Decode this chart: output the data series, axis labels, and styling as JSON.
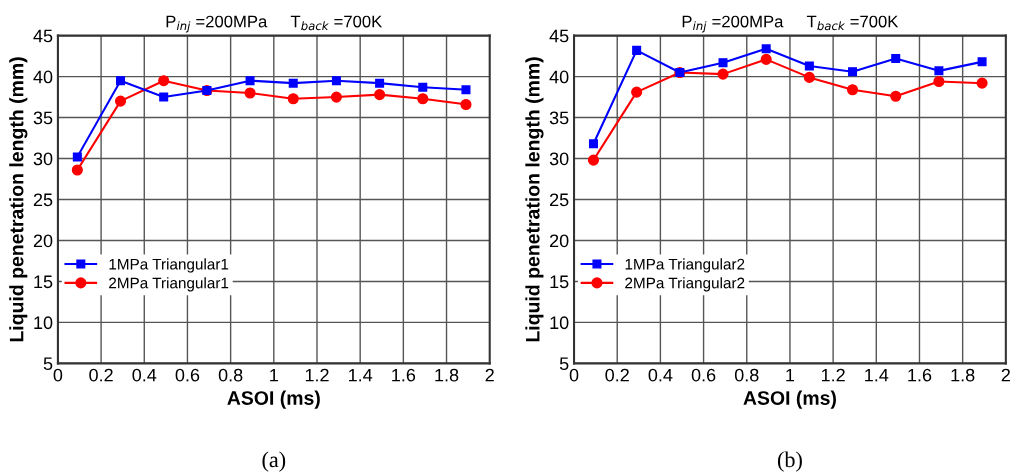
{
  "chart_data": [
    {
      "type": "line",
      "title": "P$_{inj}$ =200MPa     T$_{back}$ =700K",
      "xlabel": "ASOI (ms)",
      "ylabel": "Liquid penetration length (mm)",
      "x": [
        0.09,
        0.29,
        0.49,
        0.69,
        0.89,
        1.09,
        1.29,
        1.49,
        1.69,
        1.89
      ],
      "series": [
        {
          "name": "1MPa Triangular1",
          "color": "#0000ff",
          "marker": "square",
          "values": [
            30.2,
            39.5,
            37.5,
            38.3,
            39.5,
            39.2,
            39.5,
            39.2,
            38.7,
            38.4
          ]
        },
        {
          "name": "2MPa Triangular1",
          "color": "#ff0000",
          "marker": "circle",
          "values": [
            28.6,
            37.0,
            39.5,
            38.3,
            38.0,
            37.3,
            37.5,
            37.8,
            37.3,
            36.6
          ]
        }
      ],
      "xlim": [
        0,
        2
      ],
      "xticks": [
        0,
        0.2,
        0.4,
        0.6,
        0.8,
        1,
        1.2,
        1.4,
        1.6,
        1.8,
        2
      ],
      "ylim": [
        5,
        45
      ],
      "yticks": [
        5,
        10,
        15,
        20,
        25,
        30,
        35,
        40,
        45
      ],
      "grid": true,
      "legend": "left",
      "annotations": [
        "(a)"
      ]
    },
    {
      "type": "line",
      "title": "P$_{inj}$ =200MPa     T$_{back}$ =700K",
      "xlabel": "ASOI (ms)",
      "ylabel": "Liquid penetration length (mm)",
      "x": [
        0.09,
        0.29,
        0.49,
        0.69,
        0.89,
        1.09,
        1.29,
        1.49,
        1.69,
        1.89
      ],
      "series": [
        {
          "name": "1MPa Triangular2",
          "color": "#0000ff",
          "marker": "square",
          "values": [
            31.8,
            43.2,
            40.5,
            41.7,
            43.4,
            41.3,
            40.6,
            42.2,
            40.7,
            41.8
          ]
        },
        {
          "name": "2MPa Triangular2",
          "color": "#ff0000",
          "marker": "circle",
          "values": [
            29.8,
            38.1,
            40.5,
            40.3,
            42.1,
            39.9,
            38.4,
            37.6,
            39.4,
            39.2
          ]
        }
      ],
      "xlim": [
        0,
        2
      ],
      "xticks": [
        0,
        0.2,
        0.4,
        0.6,
        0.8,
        1,
        1.2,
        1.4,
        1.6,
        1.8,
        2
      ],
      "ylim": [
        5,
        45
      ],
      "yticks": [
        5,
        10,
        15,
        20,
        25,
        30,
        35,
        40,
        45
      ],
      "grid": true,
      "legend": "left",
      "annotations": [
        "(b)"
      ]
    }
  ]
}
